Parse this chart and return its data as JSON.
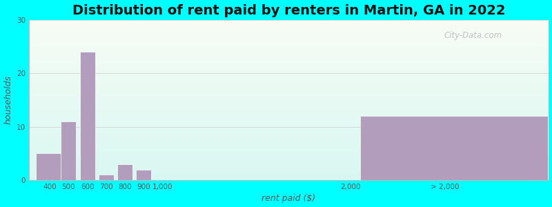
{
  "title": "Distribution of rent paid by renters in Martin, GA in 2022",
  "xlabel": "rent paid ($)",
  "ylabel": "households",
  "bar_centers": [
    400,
    500,
    600,
    700,
    800,
    900,
    1000,
    2000,
    2500
  ],
  "bar_widths": [
    150,
    80,
    80,
    80,
    80,
    80,
    80,
    10,
    1000
  ],
  "bar_values": [
    5,
    11,
    24,
    1,
    3,
    2,
    0,
    0,
    12
  ],
  "bar_color": "#b39dbd",
  "bar_edgecolor": "#ffffff",
  "ylim": [
    0,
    30
  ],
  "yticks": [
    0,
    10,
    20,
    30
  ],
  "xlim": [
    290,
    3050
  ],
  "xtick_positions": [
    400,
    500,
    600,
    700,
    800,
    900,
    1000,
    2000,
    2500
  ],
  "xtick_labels": [
    "400",
    "500",
    "600",
    "700",
    "800",
    "900",
    "1,000",
    "2,000",
    "> 2,000"
  ],
  "background_outer": "#00ffff",
  "title_fontsize": 14,
  "axis_label_fontsize": 9,
  "tick_fontsize": 7.5,
  "watermark_text": "City-Data.com",
  "watermark_color": "#b8b8b8"
}
